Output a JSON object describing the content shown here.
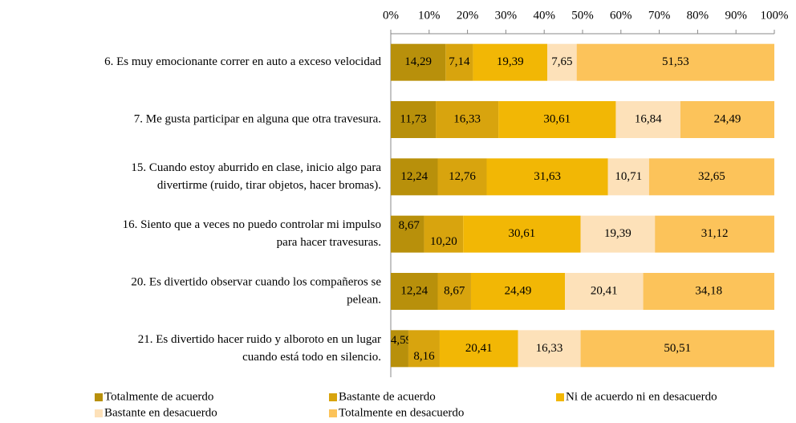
{
  "chart_data": {
    "type": "stacked_bar_horizontal",
    "categories": [
      [
        "6. Es muy emocionante correr en auto a exceso velocidad"
      ],
      [
        "7. Me gusta participar en alguna que otra travesura."
      ],
      [
        "15. Cuando estoy aburrido en clase, inicio algo para",
        "divertirme (ruido, tirar objetos, hacer bromas)."
      ],
      [
        "16. Siento que a veces no puedo controlar mi impulso",
        "para hacer travesuras."
      ],
      [
        "20. Es divertido observar cuando los compañeros se",
        "pelean."
      ],
      [
        "21. Es divertido hacer ruido y alboroto en un lugar",
        "cuando está todo en silencio."
      ]
    ],
    "series": [
      {
        "name": "Totalmente de acuerdo",
        "color": "#b8900b",
        "values": [
          14.29,
          11.73,
          12.24,
          8.67,
          12.24,
          4.59
        ],
        "value_labels": [
          "14,29",
          "11,73",
          "12,24",
          "8,67",
          "12,24",
          "4,59"
        ]
      },
      {
        "name": "Bastante de acuerdo",
        "color": "#d8a40e",
        "values": [
          7.14,
          16.33,
          12.76,
          10.2,
          8.67,
          8.16
        ],
        "value_labels": [
          "7,14",
          "16,33",
          "12,76",
          "10,20",
          "8,67",
          "8,16"
        ]
      },
      {
        "name": "Ni de acuerdo ni en desacuerdo",
        "color": "#f2b705",
        "values": [
          19.39,
          30.61,
          31.63,
          30.61,
          24.49,
          20.41
        ],
        "value_labels": [
          "19,39",
          "30,61",
          "31,63",
          "30,61",
          "24,49",
          "20,41"
        ]
      },
      {
        "name": "Bastante en desacuerdo",
        "color": "#fde1b9",
        "values": [
          7.65,
          16.84,
          10.71,
          19.39,
          20.41,
          16.33
        ],
        "value_labels": [
          "7,65",
          "16,84",
          "10,71",
          "19,39",
          "20,41",
          "16,33"
        ]
      },
      {
        "name": "Totalmente en desacuerdo",
        "color": "#fcc35a",
        "values": [
          51.53,
          24.49,
          32.65,
          31.12,
          34.18,
          50.51
        ],
        "value_labels": [
          "51,53",
          "24,49",
          "32,65",
          "31,12",
          "34,18",
          "50,51"
        ]
      }
    ],
    "xlim": [
      0,
      100
    ],
    "xticks": [
      {
        "value": 0,
        "label": "0%"
      },
      {
        "value": 10,
        "label": "10%"
      },
      {
        "value": 20,
        "label": "20%"
      },
      {
        "value": 30,
        "label": "30%"
      },
      {
        "value": 40,
        "label": "40%"
      },
      {
        "value": 50,
        "label": "50%"
      },
      {
        "value": 60,
        "label": "60%"
      },
      {
        "value": 70,
        "label": "70%"
      },
      {
        "value": 80,
        "label": "80%"
      },
      {
        "value": 90,
        "label": "90%"
      },
      {
        "value": 100,
        "label": "100%"
      }
    ],
    "legend": "bottom"
  }
}
